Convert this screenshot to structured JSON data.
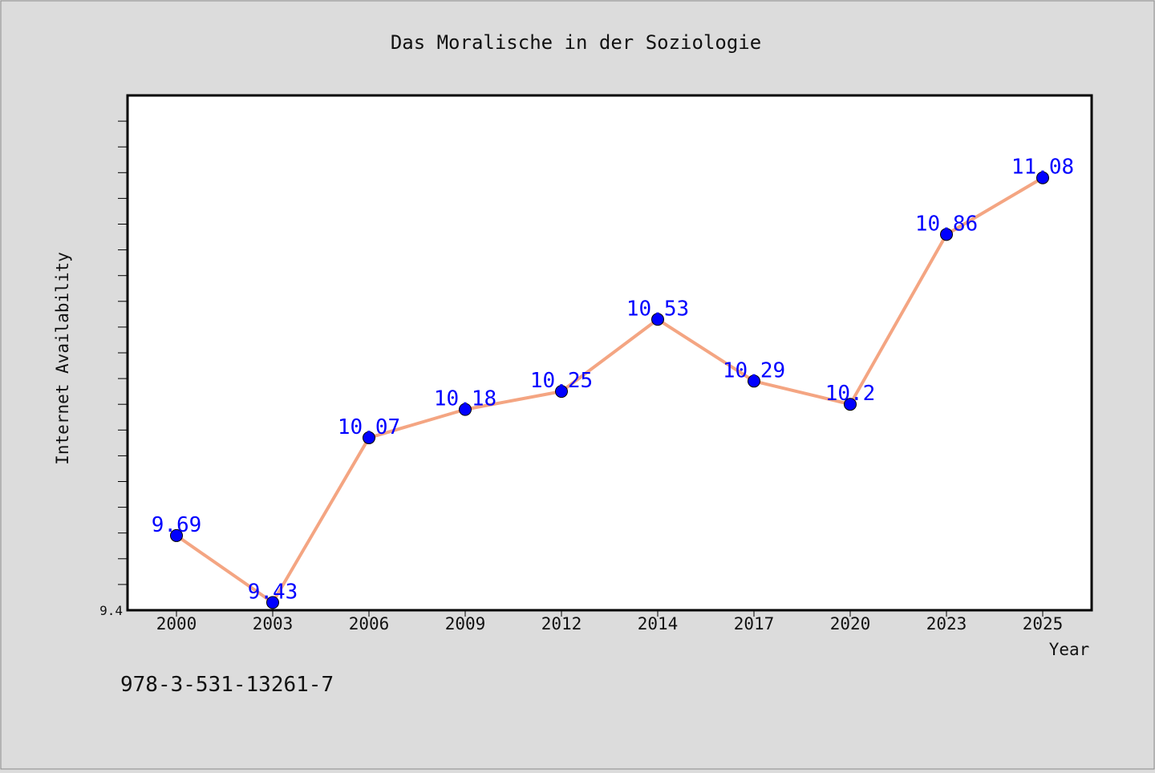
{
  "chart_data": {
    "type": "line",
    "title": "Das Moralische in der Soziologie",
    "xlabel": "Year",
    "ylabel": "Internet Availability",
    "categories": [
      "2000",
      "2003",
      "2006",
      "2009",
      "2012",
      "2014",
      "2017",
      "2020",
      "2023",
      "2025"
    ],
    "series": [
      {
        "values": [
          9.69,
          9.43,
          10.07,
          10.18,
          10.25,
          10.53,
          10.29,
          10.2,
          10.86,
          11.08
        ],
        "labels": [
          "9.69",
          "9.43",
          "10.07",
          "10.18",
          "10.25",
          "10.53",
          "10.29",
          "10.2",
          "10.86",
          "11.08"
        ]
      }
    ],
    "ylim": [
      9.4,
      11.4
    ],
    "y_tick_labels": [
      "9.4"
    ],
    "grid": false,
    "colors": {
      "line": "#f4a582",
      "marker": "#0000ff",
      "data_label": "#0000ff"
    }
  },
  "footer_text": "978-3-531-13261-7"
}
